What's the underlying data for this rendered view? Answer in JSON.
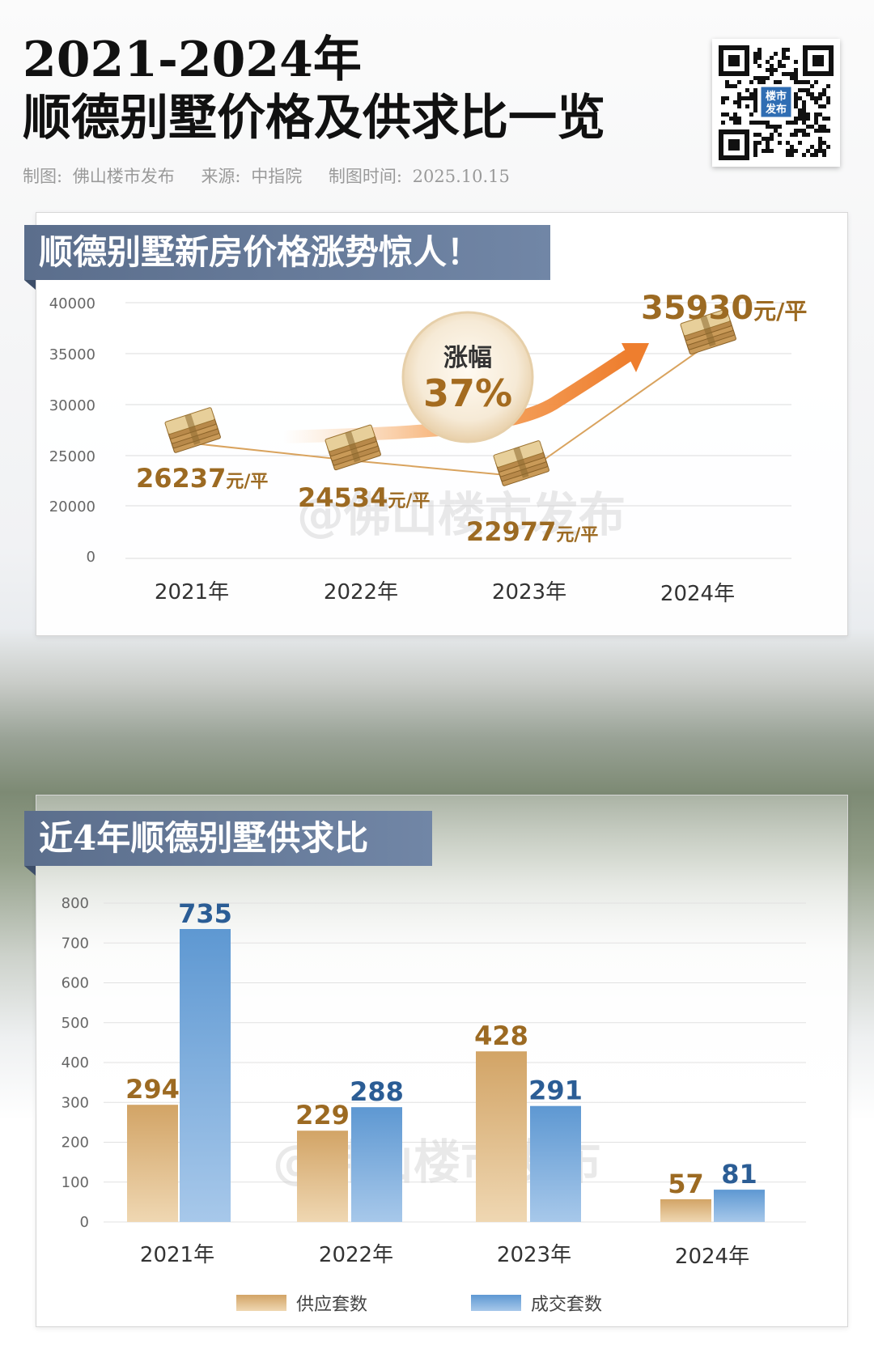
{
  "header": {
    "title_line1": "2021-2024年",
    "title_line2": "顺德别墅价格及供求比一览",
    "meta_maker": "制图: 佛山楼市发布",
    "meta_source": "来源: 中指院",
    "meta_time": "制图时间: 2025.10.15",
    "qr_badge": "楼市发布"
  },
  "watermark": "@佛山楼市发布",
  "colors": {
    "gold": "#9c6a22",
    "gold_bar": "#d9b47c",
    "blue": "#2b5d95",
    "blue_bar": "#6fa4d6",
    "banner": "#5b6e8c",
    "arrow": "#f08a3c"
  },
  "icons": {
    "money": "money-stack-icon",
    "arrow": "trend-arrow-icon"
  },
  "chart_data": [
    {
      "type": "line",
      "title": "顺德别墅新房价格涨势惊人！",
      "categories": [
        "2021年",
        "2022年",
        "2023年",
        "2024年"
      ],
      "values": [
        26237,
        24534,
        22977,
        35930
      ],
      "unit": "元/平",
      "yticks": [
        "40000",
        "35000",
        "30000",
        "25000",
        "20000",
        "0"
      ],
      "annotation": {
        "label": "涨幅",
        "value": "37%"
      },
      "grid": true
    },
    {
      "type": "bar",
      "title": "近4年顺德别墅供求比",
      "categories": [
        "2021年",
        "2022年",
        "2023年",
        "2024年"
      ],
      "series": [
        {
          "name": "供应套数",
          "values": [
            294,
            229,
            428,
            57
          ]
        },
        {
          "name": "成交套数",
          "values": [
            735,
            288,
            291,
            81
          ]
        }
      ],
      "ylim": [
        0,
        800
      ],
      "yticks": [
        "800",
        "700",
        "600",
        "500",
        "400",
        "300",
        "200",
        "100",
        "0"
      ],
      "grid": true,
      "legend": "bottom"
    }
  ]
}
